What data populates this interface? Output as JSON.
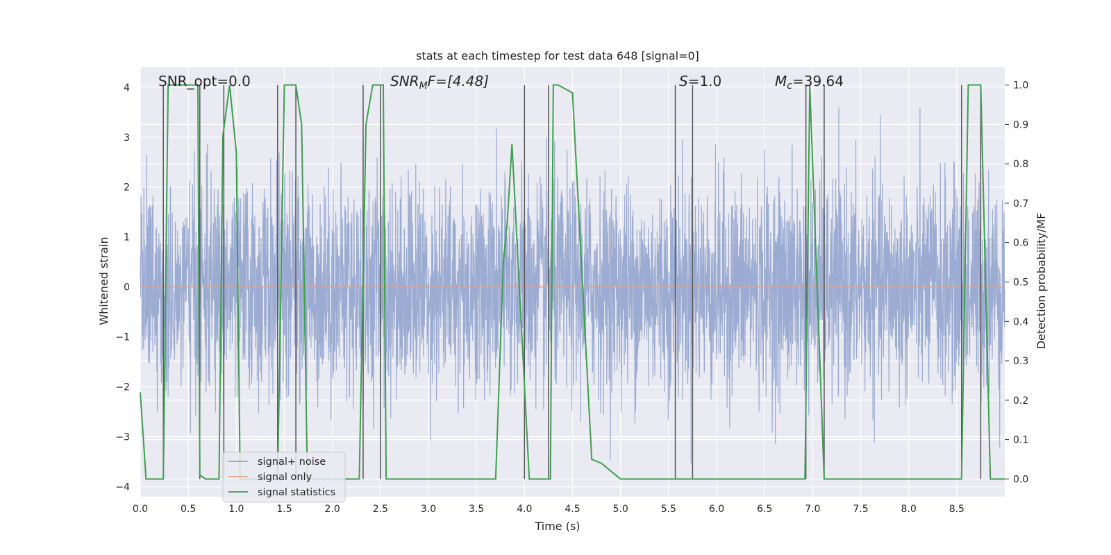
{
  "chart_data": {
    "type": "line",
    "title": "stats at each timestep for test data 648 [signal=0]",
    "xlabel": "Time (s)",
    "ylabel": "Whitened strain",
    "ylabel_right": "Detection probability/MF",
    "xlim": [
      0.0,
      9.0
    ],
    "ylim": [
      -4.2,
      4.4
    ],
    "ylim_right": [
      -0.045,
      1.045
    ],
    "x_ticks": [
      0.0,
      0.5,
      1.0,
      1.5,
      2.0,
      2.5,
      3.0,
      3.5,
      4.0,
      4.5,
      5.0,
      5.5,
      6.0,
      6.5,
      7.0,
      7.5,
      8.0,
      8.5
    ],
    "x_tick_labels": [
      "0.0",
      "0.5",
      "1.0",
      "1.5",
      "2.0",
      "2.5",
      "3.0",
      "3.5",
      "4.0",
      "4.5",
      "5.0",
      "5.5",
      "6.0",
      "6.5",
      "7.0",
      "7.5",
      "8.0",
      "8.5"
    ],
    "y_ticks": [
      -4,
      -3,
      -2,
      -1,
      0,
      1,
      2,
      3,
      4
    ],
    "y_tick_labels": [
      "−4",
      "−3",
      "−2",
      "−1",
      "0",
      "1",
      "2",
      "3",
      "4"
    ],
    "y_ticks_right": [
      0.0,
      0.1,
      0.2,
      0.3,
      0.4,
      0.5,
      0.6,
      0.7,
      0.8,
      0.9,
      1.0
    ],
    "y_tick_labels_right": [
      "0.0",
      "0.1",
      "0.2",
      "0.3",
      "0.4",
      "0.5",
      "0.6",
      "0.7",
      "0.8",
      "0.9",
      "1.0"
    ],
    "grid": true,
    "legend_position": "lower-left",
    "annotations": {
      "snr_opt": "SNR_opt=0.0",
      "snr_mf_math": "SNR",
      "snr_mf_sub": "M",
      "snr_mf_rest": "F=[4.48]",
      "s_math": "S",
      "s_rest": "=1.0",
      "mc_math": "M",
      "mc_sub": "c",
      "mc_rest": "=39.64"
    },
    "noise_strain": {
      "description_free": true,
      "typical_amplitude": 1.9,
      "peak_amplitude": 3.6,
      "duration_s": 9.0
    },
    "series": [
      {
        "name": "signal+ noise",
        "color": "#8da0cb"
      },
      {
        "name": "signal only",
        "color": "#e5a083",
        "values_constant": 0.0
      },
      {
        "name": "signal statistics",
        "color": "#3f9e4f",
        "x": [
          0.0,
          0.06,
          0.125,
          0.2,
          0.24,
          0.29,
          0.31,
          0.55,
          0.6,
          0.62,
          0.68,
          0.72,
          0.82,
          0.86,
          0.93,
          1.0,
          1.04,
          1.12,
          1.3,
          1.43,
          1.5,
          1.62,
          1.68,
          1.74,
          1.8,
          2.2,
          2.28,
          2.35,
          2.42,
          2.47,
          2.53,
          2.56,
          3.0,
          3.5,
          3.7,
          3.78,
          3.82,
          3.87,
          4.05,
          4.2,
          4.27,
          4.3,
          4.35,
          4.5,
          4.7,
          4.8,
          5.0,
          5.5,
          5.6,
          5.63,
          5.75,
          5.8,
          5.87,
          6.5,
          6.92,
          6.97,
          7.12,
          7.22,
          7.3,
          8.0,
          8.55,
          8.62,
          8.75,
          8.85,
          9.0
        ],
        "values": [
          0.22,
          0.0,
          0.0,
          0.0,
          0.0,
          1.0,
          1.0,
          1.0,
          1.0,
          0.01,
          0.0,
          0.0,
          0.0,
          0.87,
          1.0,
          0.83,
          0.0,
          0.0,
          0.0,
          0.0,
          1.0,
          1.0,
          0.9,
          0.0,
          0.0,
          0.0,
          0.0,
          0.9,
          1.0,
          1.0,
          1.0,
          0.0,
          0.0,
          0.0,
          0.0,
          0.55,
          0.65,
          0.85,
          0.0,
          0.0,
          0.0,
          1.0,
          1.0,
          0.98,
          0.05,
          0.04,
          0.0,
          0.0,
          0.0,
          0.0,
          0.0,
          0.0,
          0.0,
          0.0,
          0.0,
          1.0,
          0.0,
          0.0,
          0.0,
          0.0,
          0.0,
          1.0,
          1.0,
          0.0,
          0.0
        ]
      }
    ],
    "vertical_lines_x": [
      0.24,
      0.62,
      0.87,
      1.43,
      1.62,
      2.32,
      2.5,
      4.0,
      4.25,
      5.57,
      5.75,
      6.93,
      7.12,
      8.55,
      8.75
    ]
  }
}
